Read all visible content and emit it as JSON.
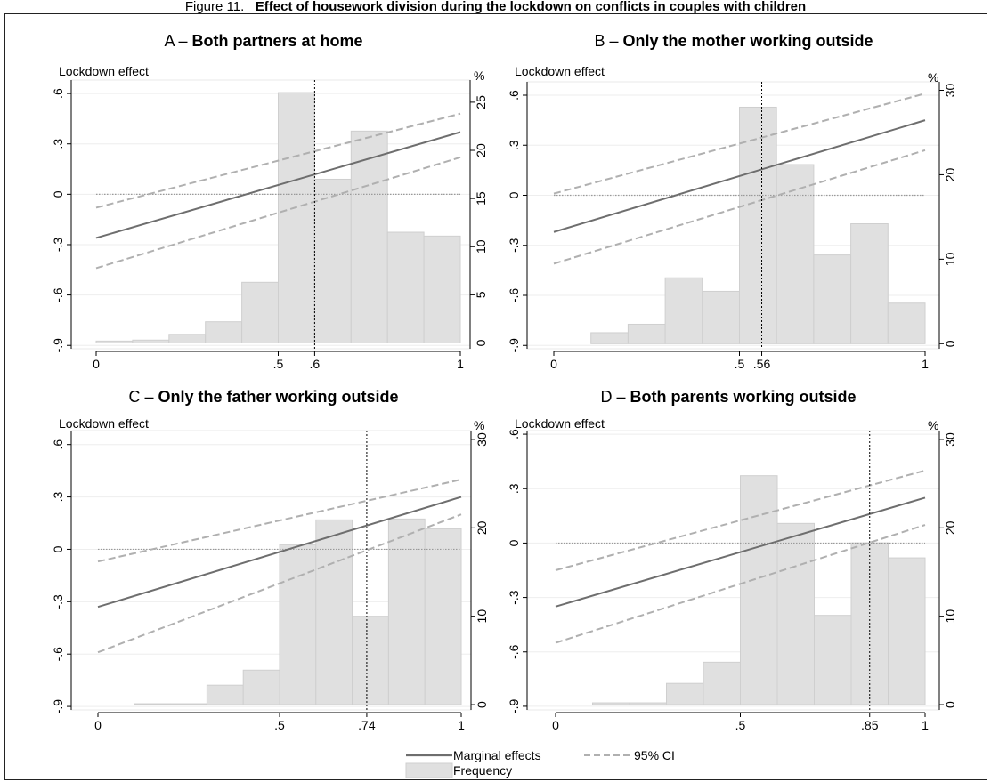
{
  "figure_title_prefix": "Figure 11.",
  "figure_title": "Effect of housework division during the lockdown on conflicts in couples with children",
  "legend": {
    "marginal": "Marginal effects",
    "ci": "95% CI",
    "frequency": "Frequency"
  },
  "colors": {
    "bar_fill": "#e0e0e0",
    "bar_stroke": "#cfcfcf",
    "marginal_line": "#6e6e6e",
    "ci_line": "#b0b0b0",
    "zero_line": "#9a9a9a",
    "threshold_line": "#000000"
  },
  "chart_data": [
    {
      "type": "bar",
      "panel_letter": "A",
      "title": "Both partners at home",
      "ylabel": "Lockdown effect",
      "y2label": "%",
      "x_ticks": [
        {
          "v": 0,
          "label": "0"
        },
        {
          "v": 0.5,
          "label": ".5"
        },
        {
          "v": 0.6,
          "label": ".6"
        },
        {
          "v": 1,
          "label": "1"
        }
      ],
      "ylim": [
        -0.92,
        0.68
      ],
      "y_ticks": [
        {
          "v": 0.6,
          "label": ".6"
        },
        {
          "v": 0.3,
          "label": ".3"
        },
        {
          "v": 0,
          "label": "0"
        },
        {
          "v": -0.3,
          "label": "-.3"
        },
        {
          "v": -0.6,
          "label": "-.6"
        },
        {
          "v": -0.9,
          "label": "-.9"
        }
      ],
      "y2lim": [
        -0.6,
        27.3
      ],
      "y2_ticks": [
        0,
        5,
        10,
        15,
        20,
        25
      ],
      "bin_width": 0.1,
      "bins": [
        0.0,
        0.1,
        0.2,
        0.3,
        0.4,
        0.5,
        0.6,
        0.7,
        0.8,
        0.9
      ],
      "frequency": [
        0.2,
        0.3,
        0.9,
        2.2,
        6.3,
        26.0,
        17.0,
        22.0,
        11.5,
        11.1
      ],
      "marginal": [
        [
          0,
          -0.26
        ],
        [
          1,
          0.37
        ]
      ],
      "ci_upper": [
        [
          0,
          -0.08
        ],
        [
          1,
          0.48
        ]
      ],
      "ci_lower": [
        [
          0,
          -0.44
        ],
        [
          1,
          0.22
        ]
      ],
      "threshold": 0.6
    },
    {
      "type": "bar",
      "panel_letter": "B",
      "title": "Only the mother working outside",
      "ylabel": "Lockdown effect",
      "y2label": "%",
      "x_ticks": [
        {
          "v": 0,
          "label": "0"
        },
        {
          "v": 0.5,
          "label": ".5"
        },
        {
          "v": 0.56,
          "label": ".56"
        },
        {
          "v": 1,
          "label": "1"
        }
      ],
      "ylim": [
        -0.92,
        0.68
      ],
      "y_ticks": [
        {
          "v": 0.6,
          "label": ".6"
        },
        {
          "v": 0.3,
          "label": ".3"
        },
        {
          "v": 0,
          "label": "0"
        },
        {
          "v": -0.3,
          "label": "-.3"
        },
        {
          "v": -0.6,
          "label": "-.6"
        },
        {
          "v": -0.9,
          "label": "-.9"
        }
      ],
      "y2lim": [
        -0.6,
        31.0
      ],
      "y2_ticks": [
        0,
        10,
        20,
        30
      ],
      "bin_width": 0.1,
      "bins": [
        0.1,
        0.2,
        0.3,
        0.4,
        0.5,
        0.6,
        0.7,
        0.8,
        0.9
      ],
      "frequency": [
        1.3,
        2.3,
        7.8,
        6.2,
        28.0,
        21.2,
        10.5,
        14.2,
        4.8
      ],
      "marginal": [
        [
          0,
          -0.22
        ],
        [
          1,
          0.45
        ]
      ],
      "ci_upper": [
        [
          0,
          0.01
        ],
        [
          1,
          0.61
        ]
      ],
      "ci_lower": [
        [
          0,
          -0.41
        ],
        [
          1,
          0.27
        ]
      ],
      "threshold": 0.56
    },
    {
      "type": "bar",
      "panel_letter": "C",
      "title": "Only the father working outside",
      "ylabel": "Lockdown effect",
      "y2label": "%",
      "x_ticks": [
        {
          "v": 0,
          "label": "0"
        },
        {
          "v": 0.5,
          "label": ".5"
        },
        {
          "v": 0.74,
          "label": ".74"
        },
        {
          "v": 1,
          "label": "1"
        }
      ],
      "ylim": [
        -0.92,
        0.68
      ],
      "y_ticks": [
        {
          "v": 0.6,
          "label": ".6"
        },
        {
          "v": 0.3,
          "label": ".3"
        },
        {
          "v": 0,
          "label": "0"
        },
        {
          "v": -0.3,
          "label": "-.3"
        },
        {
          "v": -0.6,
          "label": "-.6"
        },
        {
          "v": -0.9,
          "label": "-.9"
        }
      ],
      "y2lim": [
        -0.6,
        31.0
      ],
      "y2_ticks": [
        0,
        10,
        20,
        30
      ],
      "bin_width": 0.1,
      "bins": [
        0.1,
        0.2,
        0.3,
        0.4,
        0.5,
        0.6,
        0.7,
        0.8,
        0.9
      ],
      "frequency": [
        0.1,
        0.1,
        2.2,
        3.9,
        18.1,
        20.9,
        10.0,
        21.0,
        19.9
      ],
      "marginal": [
        [
          0,
          -0.33
        ],
        [
          1,
          0.3
        ]
      ],
      "ci_upper": [
        [
          0,
          -0.07
        ],
        [
          1,
          0.4
        ]
      ],
      "ci_lower": [
        [
          0,
          -0.59
        ],
        [
          1,
          0.2
        ]
      ],
      "threshold": 0.74
    },
    {
      "type": "bar",
      "panel_letter": "D",
      "title": "Both parents working outside",
      "ylabel": "Lockdown effect",
      "y2label": "%",
      "x_ticks": [
        {
          "v": 0,
          "label": "0"
        },
        {
          "v": 0.5,
          "label": ".5"
        },
        {
          "v": 0.85,
          "label": ".85"
        },
        {
          "v": 1,
          "label": "1"
        }
      ],
      "ylim": [
        -0.92,
        0.62
      ],
      "y_ticks": [
        {
          "v": 0.6,
          "label": ".6"
        },
        {
          "v": 0.3,
          "label": ".3"
        },
        {
          "v": 0,
          "label": "0"
        },
        {
          "v": -0.3,
          "label": "-.3"
        },
        {
          "v": -0.6,
          "label": "-.6"
        },
        {
          "v": -0.9,
          "label": "-.9"
        }
      ],
      "y2lim": [
        -0.6,
        31.0
      ],
      "y2_ticks": [
        0,
        10,
        20,
        30
      ],
      "bin_width": 0.1,
      "bins": [
        0.1,
        0.2,
        0.3,
        0.4,
        0.5,
        0.6,
        0.7,
        0.8,
        0.9
      ],
      "frequency": [
        0.2,
        0.2,
        2.4,
        4.8,
        25.9,
        20.5,
        10.1,
        18.3,
        16.6
      ],
      "marginal": [
        [
          0,
          -0.35
        ],
        [
          1,
          0.25
        ]
      ],
      "ci_upper": [
        [
          0,
          -0.15
        ],
        [
          1,
          0.4
        ]
      ],
      "ci_lower": [
        [
          0,
          -0.55
        ],
        [
          1,
          0.1
        ]
      ],
      "threshold": 0.85
    }
  ]
}
